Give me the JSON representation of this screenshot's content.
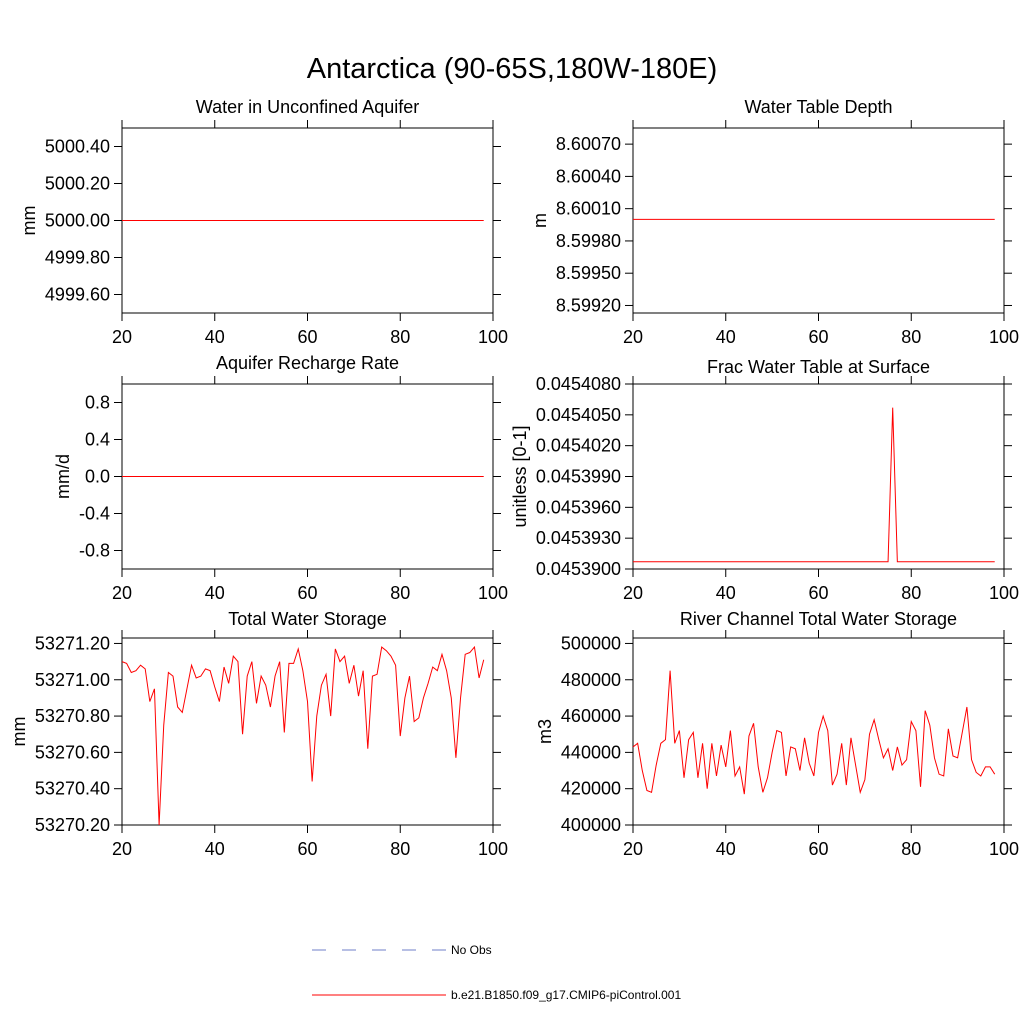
{
  "title": "Antarctica (90-65S,180W-180E)",
  "chart_data": [
    {
      "type": "line",
      "title": "Water in Unconfined Aquifer",
      "ylabel": "mm",
      "color": "#ff0000",
      "x": [
        20,
        98
      ],
      "values": [
        5000,
        5000
      ],
      "xlim": [
        20,
        100
      ],
      "xticks": [
        20,
        40,
        60,
        80,
        100
      ],
      "ylim": [
        4999.5,
        5000.5
      ],
      "yticks": [
        {
          "value": 4999.6,
          "label": "4999.60"
        },
        {
          "value": 4999.8,
          "label": "4999.80"
        },
        {
          "value": 5000,
          "label": "5000.00"
        },
        {
          "value": 5000.2,
          "label": "5000.20"
        },
        {
          "value": 5000.4,
          "label": "5000.40"
        }
      ]
    },
    {
      "type": "line",
      "title": "Water Table Depth",
      "ylabel": "m",
      "color": "#ff0000",
      "x": [
        20,
        98
      ],
      "values": [
        8.6,
        8.6
      ],
      "xlim": [
        20,
        100
      ],
      "xticks": [
        20,
        40,
        60,
        80,
        100
      ],
      "ylim": [
        8.59913,
        8.60085
      ],
      "yticks": [
        {
          "value": 8.5992,
          "label": "8.59920"
        },
        {
          "value": 8.5995,
          "label": "8.59950"
        },
        {
          "value": 8.5998,
          "label": "8.59980"
        },
        {
          "value": 8.6001,
          "label": "8.60010"
        },
        {
          "value": 8.6004,
          "label": "8.60040"
        },
        {
          "value": 8.6007,
          "label": "8.60070"
        }
      ]
    },
    {
      "type": "line",
      "title": "Aquifer Recharge Rate",
      "ylabel": "mm/d",
      "color": "#ff0000",
      "x": [
        20,
        98
      ],
      "values": [
        0,
        0
      ],
      "xlim": [
        20,
        100
      ],
      "xticks": [
        20,
        40,
        60,
        80,
        100
      ],
      "ylim": [
        -1,
        1
      ],
      "yticks": [
        -0.8,
        -0.4,
        {
          "value": 0,
          "label": "0.0"
        },
        0.4,
        0.8
      ]
    },
    {
      "type": "line",
      "title": "Frac Water Table at Surface",
      "ylabel": "unitless [0-1]",
      "color": "#ff0000",
      "x": [
        20,
        75,
        76,
        77,
        98
      ],
      "values": [
        0.0453907,
        0.0453907,
        0.0454057,
        0.0453907,
        0.0453907
      ],
      "xlim": [
        20,
        100
      ],
      "xticks": [
        20,
        40,
        60,
        80,
        100
      ],
      "ylim": [
        0.04539,
        0.045408
      ],
      "yticks": [
        {
          "value": 0.04539,
          "label": "0.0453900"
        },
        {
          "value": 0.045393,
          "label": "0.0453930"
        },
        {
          "value": 0.045396,
          "label": "0.0453960"
        },
        {
          "value": 0.045399,
          "label": "0.0453990"
        },
        {
          "value": 0.045402,
          "label": "0.0454020"
        },
        {
          "value": 0.045405,
          "label": "0.0454050"
        },
        {
          "value": 0.045408,
          "label": "0.0454080"
        }
      ]
    },
    {
      "type": "line",
      "title": "Total Water Storage",
      "ylabel": "mm",
      "color": "#ff0000",
      "x": [
        20,
        21,
        22,
        23,
        24,
        25,
        26,
        27,
        28,
        29,
        30,
        31,
        32,
        33,
        34,
        35,
        36,
        37,
        38,
        39,
        40,
        41,
        42,
        43,
        44,
        45,
        46,
        47,
        48,
        49,
        50,
        51,
        52,
        53,
        54,
        55,
        56,
        57,
        58,
        59,
        60,
        61,
        62,
        63,
        64,
        65,
        66,
        67,
        68,
        69,
        70,
        71,
        72,
        73,
        74,
        75,
        76,
        77,
        78,
        79,
        80,
        81,
        82,
        83,
        84,
        85,
        86,
        87,
        88,
        89,
        90,
        91,
        92,
        93,
        94,
        95,
        96,
        97,
        98
      ],
      "values": [
        53271.1,
        53271.09,
        53271.04,
        53271.05,
        53271.08,
        53271.06,
        53270.88,
        53270.95,
        53270.2,
        53270.75,
        53271.04,
        53271.02,
        53270.85,
        53270.82,
        53270.95,
        53271.08,
        53271.01,
        53271.02,
        53271.06,
        53271.05,
        53270.96,
        53270.88,
        53271.07,
        53270.98,
        53271.13,
        53271.1,
        53270.7,
        53271.02,
        53271.1,
        53270.87,
        53271.02,
        53270.97,
        53270.85,
        53271.02,
        53271.1,
        53270.71,
        53271.09,
        53271.09,
        53271.17,
        53271.05,
        53270.88,
        53270.44,
        53270.8,
        53270.97,
        53271.03,
        53270.8,
        53271.17,
        53271.1,
        53271.13,
        53270.98,
        53271.08,
        53270.91,
        53271.05,
        53270.62,
        53271.02,
        53271.03,
        53271.18,
        53271.16,
        53271.13,
        53271.08,
        53270.69,
        53270.9,
        53271.02,
        53270.77,
        53270.79,
        53270.9,
        53270.98,
        53271.07,
        53271.05,
        53271.14,
        53271.05,
        53270.9,
        53270.57,
        53270.9,
        53271.14,
        53271.15,
        53271.18,
        53271.01,
        53271.11
      ],
      "xlim": [
        20,
        100
      ],
      "xticks": [
        20,
        40,
        60,
        80,
        100
      ],
      "ylim": [
        53270.2,
        53271.23
      ],
      "yticks": [
        {
          "value": 53270.2,
          "label": "53270.20"
        },
        {
          "value": 53270.4,
          "label": "53270.40"
        },
        {
          "value": 53270.6,
          "label": "53270.60"
        },
        {
          "value": 53270.8,
          "label": "53270.80"
        },
        {
          "value": 53271,
          "label": "53271.00"
        },
        {
          "value": 53271.2,
          "label": "53271.20"
        }
      ]
    },
    {
      "type": "line",
      "title": "River Channel Total Water Storage",
      "ylabel": "m3",
      "color": "#ff0000",
      "x": [
        20,
        21,
        22,
        23,
        24,
        25,
        26,
        27,
        28,
        29,
        30,
        31,
        32,
        33,
        34,
        35,
        36,
        37,
        38,
        39,
        40,
        41,
        42,
        43,
        44,
        45,
        46,
        47,
        48,
        49,
        50,
        51,
        52,
        53,
        54,
        55,
        56,
        57,
        58,
        59,
        60,
        61,
        62,
        63,
        64,
        65,
        66,
        67,
        68,
        69,
        70,
        71,
        72,
        73,
        74,
        75,
        76,
        77,
        78,
        79,
        80,
        81,
        82,
        83,
        84,
        85,
        86,
        87,
        88,
        89,
        90,
        91,
        92,
        93,
        94,
        95,
        96,
        97,
        98
      ],
      "values": [
        443000,
        445000,
        430000,
        419000,
        418000,
        433000,
        445000,
        447000,
        485000,
        445000,
        452000,
        426000,
        447000,
        451000,
        426000,
        445000,
        420000,
        445000,
        427000,
        444000,
        432000,
        452000,
        427000,
        432000,
        417000,
        449000,
        456000,
        432000,
        418000,
        426000,
        440000,
        452000,
        451000,
        427000,
        443000,
        442000,
        430000,
        448000,
        434000,
        427000,
        451000,
        460000,
        452000,
        422000,
        428000,
        445000,
        422000,
        448000,
        433000,
        418000,
        425000,
        450000,
        458000,
        447000,
        437000,
        442000,
        430000,
        443000,
        433000,
        436000,
        457000,
        452000,
        421000,
        463000,
        455000,
        437000,
        428000,
        427000,
        453000,
        438000,
        437000,
        451000,
        465000,
        436000,
        429000,
        427000,
        432000,
        432000,
        428000
      ],
      "xlim": [
        20,
        100
      ],
      "xticks": [
        20,
        40,
        60,
        80,
        100
      ],
      "ylim": [
        400000,
        503000
      ],
      "yticks": [
        400000,
        420000,
        440000,
        460000,
        480000,
        500000
      ]
    }
  ],
  "legend": [
    {
      "name": "No Obs",
      "color": "#6f7fc8",
      "dash": true
    },
    {
      "name": "b.e21.B1850.f09_g17.CMIP6-piControl.001",
      "color": "#ff0000",
      "dash": false
    }
  ]
}
